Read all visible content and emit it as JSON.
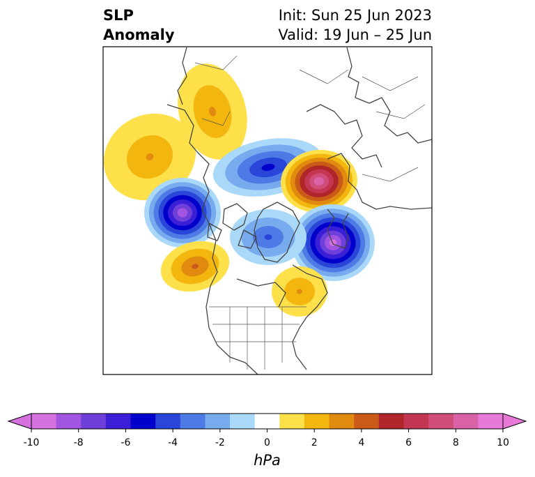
{
  "title": {
    "left_line1": "SLP",
    "left_line2": "Anomaly",
    "right_line1": "Init: Sun 25 Jun 2023",
    "right_line2": "Valid: 19 Jun – 25 Jun"
  },
  "map": {
    "projection": "polar stereographic, North Pole",
    "features": [
      {
        "name": "north-pacific-high",
        "sign": "positive",
        "peak_level": 2
      },
      {
        "name": "alaska-yukon-high",
        "sign": "positive",
        "peak_level": 2
      },
      {
        "name": "east-siberian-sea-low",
        "sign": "negative",
        "peak_level": 4
      },
      {
        "name": "gulf-of-alaska-low",
        "sign": "negative",
        "peak_level": 7
      },
      {
        "name": "kara-sea-high",
        "sign": "positive",
        "peak_level": 7
      },
      {
        "name": "greenland-sea-low",
        "sign": "negative",
        "peak_level": 8
      },
      {
        "name": "north-atlantic-high",
        "sign": "positive",
        "peak_level": 3
      },
      {
        "name": "eastern-canada-high",
        "sign": "positive",
        "peak_level": 2
      },
      {
        "name": "canadian-archipelago-low",
        "sign": "negative",
        "peak_level": 3
      }
    ]
  },
  "colorbar": {
    "unit": "hPa",
    "ticks": [
      "-10",
      "-8",
      "-6",
      "-4",
      "-2",
      "0",
      "2",
      "4",
      "6",
      "8",
      "10"
    ],
    "negative_colors": [
      "#d671e0",
      "#a155e0",
      "#6e3fd9",
      "#3a1fd6",
      "#0000cd",
      "#2a46d8",
      "#4e7ae6",
      "#78aaee",
      "#aad8f8"
    ],
    "neutral_color": "#ffffff",
    "positive_colors": [
      "#fde04a",
      "#f3b60e",
      "#e08a10",
      "#c95a18",
      "#b0252a",
      "#c23652",
      "#cf4d78",
      "#d962a8",
      "#e77ad8"
    ],
    "extend_low_color": "#d671e0",
    "extend_high_color": "#e77ad8"
  }
}
